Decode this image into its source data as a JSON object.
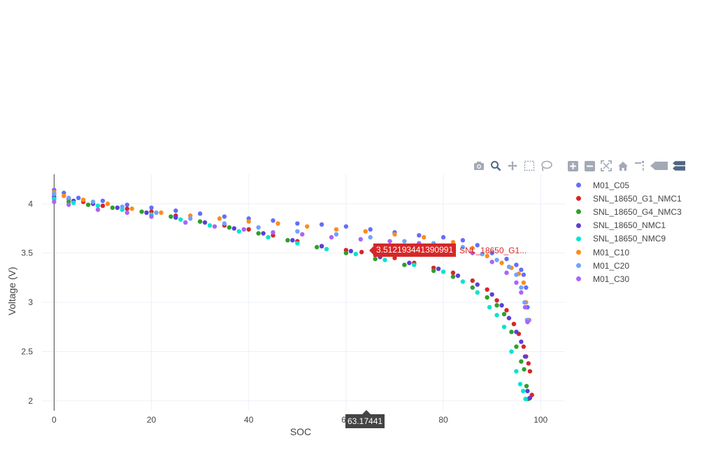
{
  "chart_data": {
    "type": "scatter",
    "title": "",
    "xlabel": "SOC",
    "ylabel": "Voltage (V)",
    "xlim": [
      -2.5,
      105
    ],
    "ylim": [
      1.9,
      4.3
    ],
    "x_ticks": [
      0,
      20,
      40,
      60,
      80,
      100
    ],
    "y_ticks": [
      2,
      2.5,
      3,
      3.5,
      4
    ],
    "grid": true,
    "legend_position": "right",
    "series": [
      {
        "name": "M01_C05",
        "color": "#636efa",
        "x": [
          0,
          2,
          5,
          10,
          15,
          20,
          25,
          30,
          35,
          40,
          45,
          50,
          55,
          60,
          65,
          70,
          75,
          80,
          84,
          87,
          90,
          93,
          95,
          96,
          96.5,
          97,
          97.3,
          97.6
        ],
        "y": [
          4.14,
          4.11,
          4.06,
          4.03,
          3.99,
          3.96,
          3.93,
          3.9,
          3.87,
          3.85,
          3.83,
          3.8,
          3.79,
          3.77,
          3.74,
          3.71,
          3.68,
          3.66,
          3.63,
          3.58,
          3.5,
          3.44,
          3.38,
          3.33,
          3.28,
          3.15,
          2.95,
          2.82
        ]
      },
      {
        "name": "SNL_18650_G1_NMC1",
        "color": "#d62728",
        "x": [
          0,
          3,
          6,
          10,
          15,
          20,
          25,
          30,
          35,
          40,
          45,
          50,
          55,
          60,
          63.2,
          66,
          70,
          74,
          78,
          82,
          86,
          89,
          91,
          93,
          94.5,
          95.5,
          96.5,
          97,
          97.5,
          97.8,
          98.2
        ],
        "y": [
          4.1,
          4.05,
          4.02,
          3.98,
          3.95,
          3.92,
          3.88,
          3.82,
          3.78,
          3.74,
          3.68,
          3.62,
          3.57,
          3.53,
          3.51,
          3.49,
          3.45,
          3.4,
          3.35,
          3.3,
          3.22,
          3.13,
          3.02,
          2.92,
          2.78,
          2.68,
          2.55,
          2.45,
          2.38,
          2.3,
          2.06
        ]
      },
      {
        "name": "SNL_18650_G4_NMC3",
        "color": "#2ca02c",
        "x": [
          0,
          3,
          7,
          12,
          18,
          24,
          30,
          36,
          42,
          48,
          54,
          60,
          66,
          72,
          78,
          82,
          86,
          89,
          91,
          92.5,
          94,
          95,
          96,
          96.6,
          97.1,
          97.5
        ],
        "y": [
          4.05,
          4.02,
          3.99,
          3.96,
          3.92,
          3.87,
          3.82,
          3.76,
          3.7,
          3.63,
          3.56,
          3.5,
          3.44,
          3.38,
          3.32,
          3.26,
          3.15,
          3.05,
          2.97,
          2.88,
          2.7,
          2.55,
          2.4,
          2.32,
          2.15,
          2.02
        ]
      },
      {
        "name": "SNL_18650_NMC1",
        "color": "#5b3fd6",
        "x": [
          0,
          4,
          8,
          13,
          19,
          25,
          31,
          37,
          43,
          49,
          55,
          61,
          67,
          73,
          79,
          83,
          87,
          90,
          92,
          93.5,
          95,
          96,
          96.8,
          97.3,
          97.8
        ],
        "y": [
          4.07,
          4.03,
          4.0,
          3.96,
          3.91,
          3.86,
          3.81,
          3.75,
          3.7,
          3.63,
          3.57,
          3.52,
          3.46,
          3.4,
          3.34,
          3.27,
          3.18,
          3.08,
          2.97,
          2.84,
          2.7,
          2.6,
          2.45,
          2.1,
          2.03
        ]
      },
      {
        "name": "SNL_18650_NMC9",
        "color": "#00e5d0",
        "x": [
          0,
          4,
          9,
          14,
          20,
          26,
          32,
          38,
          44,
          50,
          56,
          62,
          68,
          74,
          80,
          84,
          87,
          89.5,
          91,
          92.5,
          94,
          95,
          95.8,
          96.4,
          96.9
        ],
        "y": [
          4.05,
          4.01,
          3.98,
          3.94,
          3.89,
          3.84,
          3.78,
          3.72,
          3.66,
          3.6,
          3.54,
          3.49,
          3.43,
          3.38,
          3.31,
          3.21,
          3.1,
          2.95,
          2.87,
          2.75,
          2.5,
          2.3,
          2.17,
          2.1,
          2.02
        ]
      },
      {
        "name": "M01_C10",
        "color": "#ff8c1a",
        "x": [
          0,
          2,
          6,
          11,
          16,
          22,
          28,
          34,
          40,
          46,
          52,
          58,
          64,
          70,
          76,
          82,
          86,
          89,
          92,
          94,
          95.5,
          96.5,
          97,
          97.4
        ],
        "y": [
          4.12,
          4.08,
          4.04,
          4.0,
          3.95,
          3.91,
          3.88,
          3.85,
          3.82,
          3.8,
          3.77,
          3.74,
          3.72,
          3.69,
          3.66,
          3.61,
          3.55,
          3.47,
          3.4,
          3.35,
          3.29,
          3.2,
          3.0,
          2.82
        ]
      },
      {
        "name": "M01_C20",
        "color": "#6fa3ff",
        "x": [
          0,
          3,
          8,
          14,
          21,
          28,
          35,
          42,
          50,
          58,
          65,
          72,
          78,
          84,
          88,
          91,
          93.5,
          95,
          96,
          96.7,
          97.2
        ],
        "y": [
          4.1,
          4.06,
          4.02,
          3.97,
          3.91,
          3.85,
          3.8,
          3.76,
          3.72,
          3.69,
          3.66,
          3.62,
          3.6,
          3.56,
          3.49,
          3.43,
          3.36,
          3.28,
          3.15,
          3.0,
          2.82
        ]
      },
      {
        "name": "M01_C30",
        "color": "#ab63fa",
        "x": [
          0,
          3,
          9,
          15,
          20,
          27,
          33,
          39,
          45,
          51,
          57,
          63,
          69,
          75,
          81,
          86,
          90,
          93,
          95,
          96,
          96.8,
          97.3
        ],
        "y": [
          4.02,
          3.99,
          3.94,
          3.91,
          3.87,
          3.81,
          3.77,
          3.74,
          3.71,
          3.69,
          3.66,
          3.64,
          3.62,
          3.6,
          3.57,
          3.5,
          3.41,
          3.3,
          3.2,
          3.1,
          2.95,
          2.8
        ]
      }
    ]
  },
  "hover": {
    "x_value": "63.17441",
    "y_value": "3.512193441390991",
    "series_name": "SNL_18650_G1..."
  },
  "modebar": [
    "camera-icon",
    "zoom-icon",
    "pan-icon",
    "box-select-icon",
    "lasso-icon",
    "zoom-in-icon",
    "zoom-out-icon",
    "autoscale-icon",
    "reset-axes-icon",
    "spike-lines-icon",
    "hover-closest-icon",
    "hover-compare-icon"
  ]
}
